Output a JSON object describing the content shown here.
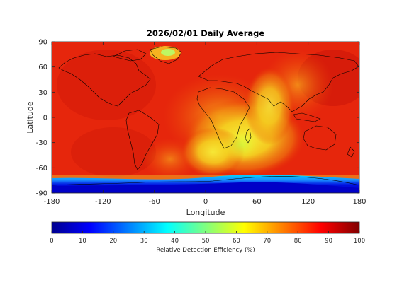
{
  "chart_data": {
    "type": "heatmap",
    "title": "2026/02/01 Daily Average",
    "xlabel": "Longitude",
    "ylabel": "Latitude",
    "xlim": [
      -180,
      180
    ],
    "ylim": [
      -90,
      90
    ],
    "xticks": [
      "-180",
      "-120",
      "-60",
      "0",
      "60",
      "120",
      "180"
    ],
    "yticks": [
      "90",
      "60",
      "30",
      "0",
      "-30",
      "-60",
      "-90"
    ],
    "colorbar": {
      "label": "Relative Detection Efficiency (%)",
      "colormap": "jet",
      "range": [
        0,
        100
      ],
      "ticks": [
        "0",
        "10",
        "20",
        "30",
        "40",
        "50",
        "60",
        "70",
        "80",
        "90",
        "100"
      ]
    },
    "overlay": "coastlines",
    "value_regions": [
      {
        "region": "most of globe",
        "value": 88
      },
      {
        "region": "Greenland interior",
        "value": 62
      },
      {
        "region": "southern Atlantic / Africa / western Indian Ocean",
        "value": 65
      },
      {
        "region": "Antarctic coast band",
        "value": 30
      },
      {
        "region": "Antarctica",
        "value": 5
      }
    ]
  }
}
